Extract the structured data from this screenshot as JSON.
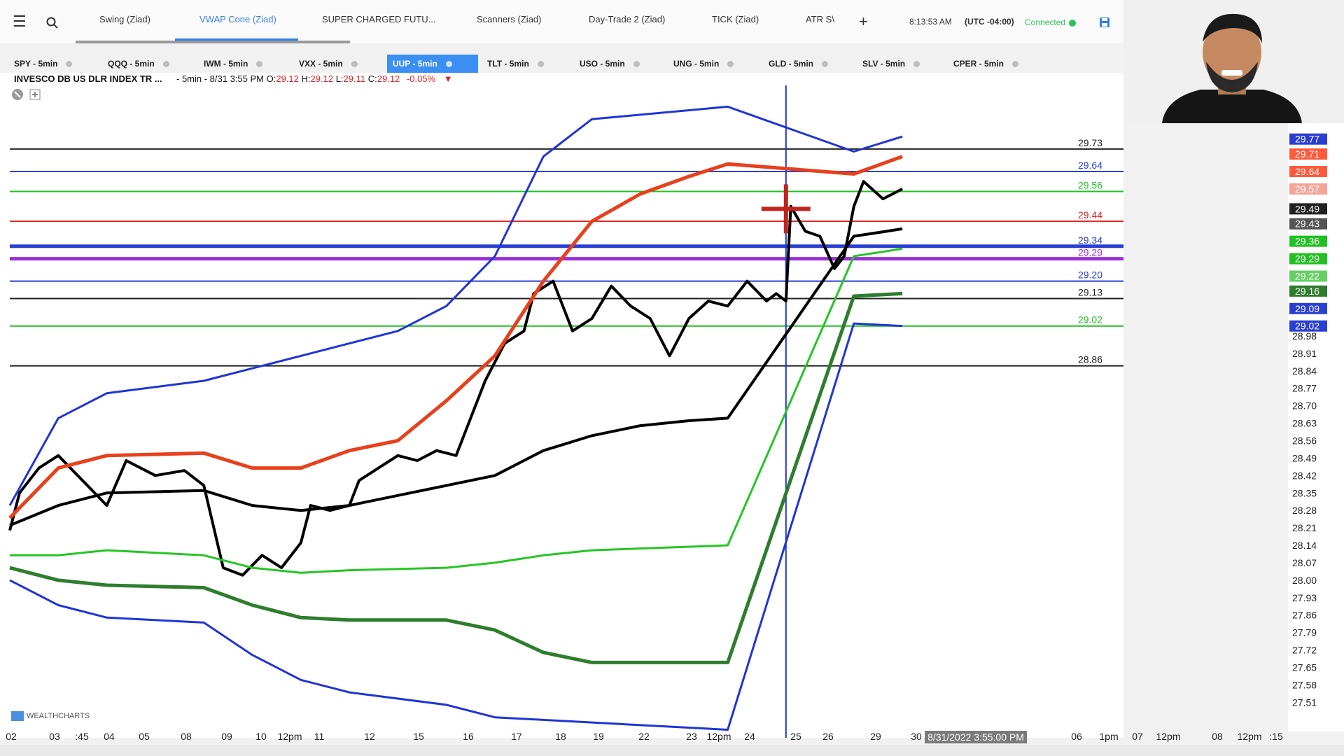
{
  "toolbar": {
    "tabs": [
      {
        "label": "Swing (Ziad)",
        "active": false
      },
      {
        "label": "VWAP Cone (Ziad)",
        "active": true
      },
      {
        "label": "SUPER CHARGED FUTU...",
        "active": false
      },
      {
        "label": "Scanners (Ziad)",
        "active": false
      },
      {
        "label": "Day-Trade 2 (Ziad)",
        "active": false
      },
      {
        "label": "TICK (Ziad)",
        "active": false
      },
      {
        "label": "ATR S\\",
        "active": false
      }
    ],
    "add_label": "+",
    "clock": "8:13:53 AM",
    "timezone": "(UTC -04:00)",
    "status": "Connected",
    "status_color": "#2fbf5a"
  },
  "symbols": [
    {
      "label": "SPY - 5min",
      "active": false
    },
    {
      "label": "QQQ - 5min",
      "active": false
    },
    {
      "label": "IWM - 5min",
      "active": false
    },
    {
      "label": "VXX - 5min",
      "active": false
    },
    {
      "label": "UUP - 5min",
      "active": true
    },
    {
      "label": "TLT - 5min",
      "active": false
    },
    {
      "label": "USO - 5min",
      "active": false
    },
    {
      "label": "UNG - 5min",
      "active": false
    },
    {
      "label": "GLD - 5min",
      "active": false
    },
    {
      "label": "SLV - 5min",
      "active": false
    },
    {
      "label": "CPER - 5min",
      "active": false
    }
  ],
  "instrument": {
    "name": "INVESCO DB US DLR INDEX TR ...",
    "interval": "- 5min - 8/31 3:55 PM",
    "open_label": "O:",
    "open": "29.12",
    "high_label": "H:",
    "high": "29.12",
    "low_label": "L:",
    "low": "29.11",
    "close_label": "C:",
    "close": "29.12",
    "change": "-0.05%",
    "change_color": "#e02424"
  },
  "watermark": "WEALTHCHARTS",
  "chart_data": {
    "type": "line",
    "ylim": [
      27.48,
      29.8
    ],
    "y_ticks": [
      29.77,
      29.71,
      29.64,
      29.57,
      29.49,
      29.43,
      29.36,
      29.29,
      29.22,
      29.16,
      29.09,
      29.02,
      28.98,
      28.91,
      28.84,
      28.77,
      28.7,
      28.63,
      28.56,
      28.49,
      28.42,
      28.35,
      28.28,
      28.21,
      28.14,
      28.07,
      28.0,
      27.93,
      27.86,
      27.79,
      27.72,
      27.65,
      27.58,
      27.51
    ],
    "x_labels": [
      "02",
      "03",
      ":45",
      "04",
      "05",
      "08",
      "09",
      "10",
      "12pm",
      "11",
      "12",
      "15",
      "16",
      "17",
      "18",
      "19",
      "22",
      "23",
      "12pm",
      "24",
      "25",
      "26",
      "29",
      "30",
      "8/31/2022 3:55:00 PM",
      "06",
      "1pm",
      "07",
      "12pm",
      "08",
      "12pm",
      ":15"
    ],
    "level_lines": [
      {
        "value": 29.73,
        "label": "29.73",
        "color": "#222222"
      },
      {
        "value": 29.64,
        "label": "29.64",
        "color": "#2a3fd1"
      },
      {
        "value": 29.56,
        "label": "29.56",
        "color": "#22c022"
      },
      {
        "value": 29.44,
        "label": "29.44",
        "color": "#e02424"
      },
      {
        "value": 29.34,
        "label": "29.34",
        "color": "#2a3fd1"
      },
      {
        "value": 29.29,
        "label": "29.29",
        "color": "#9b30d9"
      },
      {
        "value": 29.2,
        "label": "29.20",
        "color": "#2a3fd1"
      },
      {
        "value": 29.13,
        "label": "29.13",
        "color": "#222222"
      },
      {
        "value": 29.02,
        "label": "29.02",
        "color": "#22c022"
      },
      {
        "value": 28.86,
        "label": "28.86",
        "color": "#222222"
      }
    ],
    "price_badges": [
      {
        "value": 29.77,
        "label": "29.77",
        "color": "#2a3fd1"
      },
      {
        "value": 29.71,
        "label": "29.71",
        "color": "#ff5a3c"
      },
      {
        "value": 29.64,
        "label": "29.64",
        "color": "#ff5a3c"
      },
      {
        "value": 29.57,
        "label": "29.57",
        "color": "#f4a59a"
      },
      {
        "value": 29.49,
        "label": "29.49",
        "color": "#222222"
      },
      {
        "value": 29.43,
        "label": "29.43",
        "color": "#555555"
      },
      {
        "value": 29.36,
        "label": "29.36",
        "color": "#22c022"
      },
      {
        "value": 29.29,
        "label": "29.29",
        "color": "#22c022"
      },
      {
        "value": 29.22,
        "label": "29.22",
        "color": "#66d066"
      },
      {
        "value": 29.16,
        "label": "29.16",
        "color": "#2e7d2e"
      },
      {
        "value": 29.09,
        "label": "29.09",
        "color": "#2a3fd1"
      },
      {
        "value": 29.02,
        "label": "29.02",
        "color": "#2a3fd1"
      }
    ],
    "series": [
      {
        "color": "#000000",
        "width": 4,
        "values": [
          [
            0,
            28.2
          ],
          [
            0.01,
            28.35
          ],
          [
            0.03,
            28.45
          ],
          [
            0.05,
            28.5
          ],
          [
            0.08,
            28.38
          ],
          [
            0.1,
            28.3
          ],
          [
            0.12,
            28.48
          ],
          [
            0.15,
            28.42
          ],
          [
            0.18,
            28.44
          ],
          [
            0.2,
            28.38
          ],
          [
            0.22,
            28.05
          ],
          [
            0.24,
            28.02
          ],
          [
            0.26,
            28.1
          ],
          [
            0.28,
            28.05
          ],
          [
            0.3,
            28.15
          ],
          [
            0.31,
            28.3
          ],
          [
            0.33,
            28.28
          ],
          [
            0.35,
            28.3
          ],
          [
            0.36,
            28.4
          ],
          [
            0.38,
            28.45
          ],
          [
            0.4,
            28.5
          ],
          [
            0.42,
            28.48
          ],
          [
            0.44,
            28.52
          ],
          [
            0.46,
            28.5
          ],
          [
            0.47,
            28.6
          ],
          [
            0.49,
            28.8
          ],
          [
            0.51,
            28.95
          ],
          [
            0.53,
            29.0
          ],
          [
            0.54,
            29.15
          ],
          [
            0.56,
            29.2
          ],
          [
            0.58,
            29.0
          ],
          [
            0.6,
            29.05
          ],
          [
            0.62,
            29.18
          ],
          [
            0.64,
            29.1
          ],
          [
            0.66,
            29.05
          ],
          [
            0.68,
            28.9
          ],
          [
            0.7,
            29.05
          ],
          [
            0.72,
            29.12
          ],
          [
            0.74,
            29.1
          ],
          [
            0.76,
            29.2
          ],
          [
            0.78,
            29.12
          ],
          [
            0.79,
            29.15
          ],
          [
            0.8,
            29.12
          ],
          [
            0.805,
            29.5
          ],
          [
            0.82,
            29.4
          ],
          [
            0.835,
            29.38
          ],
          [
            0.85,
            29.25
          ],
          [
            0.86,
            29.3
          ],
          [
            0.87,
            29.5
          ],
          [
            0.88,
            29.6
          ],
          [
            0.9,
            29.53
          ],
          [
            0.92,
            29.57
          ]
        ]
      },
      {
        "color": "#000000",
        "width": 4,
        "values": [
          [
            0,
            28.22
          ],
          [
            0.05,
            28.3
          ],
          [
            0.1,
            28.35
          ],
          [
            0.2,
            28.36
          ],
          [
            0.25,
            28.3
          ],
          [
            0.3,
            28.28
          ],
          [
            0.35,
            28.3
          ],
          [
            0.4,
            28.34
          ],
          [
            0.45,
            28.38
          ],
          [
            0.5,
            28.42
          ],
          [
            0.55,
            28.52
          ],
          [
            0.6,
            28.58
          ],
          [
            0.65,
            28.62
          ],
          [
            0.7,
            28.64
          ],
          [
            0.74,
            28.65
          ],
          [
            0.87,
            29.38
          ],
          [
            0.92,
            29.41
          ]
        ]
      },
      {
        "color": "#e8401c",
        "width": 5,
        "values": [
          [
            0,
            28.25
          ],
          [
            0.05,
            28.45
          ],
          [
            0.1,
            28.5
          ],
          [
            0.2,
            28.51
          ],
          [
            0.25,
            28.45
          ],
          [
            0.3,
            28.45
          ],
          [
            0.35,
            28.52
          ],
          [
            0.4,
            28.56
          ],
          [
            0.45,
            28.72
          ],
          [
            0.5,
            28.9
          ],
          [
            0.55,
            29.2
          ],
          [
            0.6,
            29.44
          ],
          [
            0.65,
            29.55
          ],
          [
            0.7,
            29.62
          ],
          [
            0.74,
            29.67
          ],
          [
            0.87,
            29.63
          ],
          [
            0.92,
            29.7
          ]
        ]
      },
      {
        "color": "#1f35d6",
        "width": 3,
        "values": [
          [
            0,
            28.3
          ],
          [
            0.05,
            28.65
          ],
          [
            0.1,
            28.75
          ],
          [
            0.2,
            28.8
          ],
          [
            0.25,
            28.85
          ],
          [
            0.3,
            28.9
          ],
          [
            0.35,
            28.95
          ],
          [
            0.4,
            29.0
          ],
          [
            0.45,
            29.1
          ],
          [
            0.5,
            29.3
          ],
          [
            0.55,
            29.7
          ],
          [
            0.6,
            29.85
          ],
          [
            0.74,
            29.9
          ],
          [
            0.87,
            29.72
          ],
          [
            0.92,
            29.78
          ]
        ]
      },
      {
        "color": "#2e7d2e",
        "width": 5,
        "values": [
          [
            0,
            28.05
          ],
          [
            0.05,
            28.0
          ],
          [
            0.1,
            27.98
          ],
          [
            0.2,
            27.97
          ],
          [
            0.25,
            27.9
          ],
          [
            0.3,
            27.85
          ],
          [
            0.35,
            27.84
          ],
          [
            0.45,
            27.84
          ],
          [
            0.5,
            27.8
          ],
          [
            0.55,
            27.71
          ],
          [
            0.6,
            27.67
          ],
          [
            0.74,
            27.67
          ],
          [
            0.87,
            29.14
          ],
          [
            0.92,
            29.15
          ]
        ]
      },
      {
        "color": "#25c525",
        "width": 3,
        "values": [
          [
            0,
            28.1
          ],
          [
            0.05,
            28.1
          ],
          [
            0.1,
            28.12
          ],
          [
            0.2,
            28.1
          ],
          [
            0.25,
            28.05
          ],
          [
            0.3,
            28.03
          ],
          [
            0.35,
            28.04
          ],
          [
            0.45,
            28.05
          ],
          [
            0.5,
            28.07
          ],
          [
            0.55,
            28.1
          ],
          [
            0.6,
            28.12
          ],
          [
            0.74,
            28.14
          ],
          [
            0.87,
            29.3
          ],
          [
            0.92,
            29.33
          ]
        ]
      },
      {
        "color": "#1f35d6",
        "width": 3,
        "values": [
          [
            0,
            28.0
          ],
          [
            0.05,
            27.9
          ],
          [
            0.1,
            27.85
          ],
          [
            0.2,
            27.83
          ],
          [
            0.25,
            27.7
          ],
          [
            0.3,
            27.6
          ],
          [
            0.35,
            27.55
          ],
          [
            0.45,
            27.5
          ],
          [
            0.5,
            27.45
          ],
          [
            0.74,
            27.4
          ],
          [
            0.87,
            29.03
          ],
          [
            0.92,
            29.02
          ]
        ]
      }
    ],
    "legend": "none",
    "grid": false
  }
}
